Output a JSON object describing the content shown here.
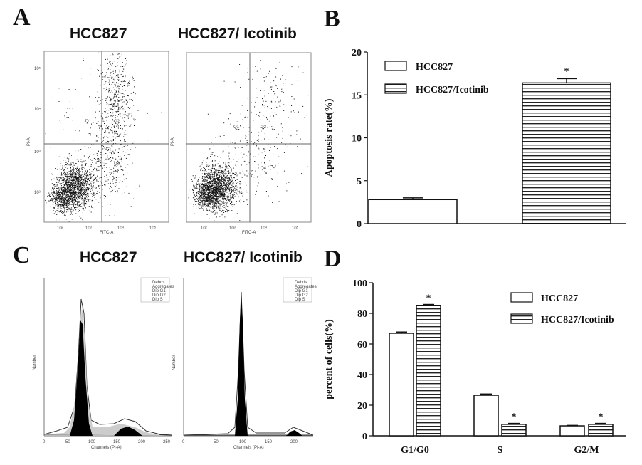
{
  "panels": {
    "a": {
      "letter": "A",
      "titles": [
        "HCC827",
        "HCC827/ Icotinib"
      ],
      "quadrants": [
        "Q1",
        "Q2",
        "Q3",
        "Q4"
      ],
      "x_label": "FITC-A",
      "y_label": "PI-A",
      "log_ticks": [
        "10²",
        "10³",
        "10⁴",
        "10⁵"
      ]
    },
    "b": {
      "letter": "B"
    },
    "c": {
      "letter": "C",
      "titles": [
        "HCC827",
        "HCC827/ Icotinib"
      ],
      "x_label": "Channels (PI-A)",
      "y_label": "Number",
      "legend": [
        "Debris",
        "Aggregates",
        "Dip G1",
        "Dip G2",
        "Dip S"
      ],
      "x_ticks": [
        "0",
        "50",
        "100",
        "150",
        "200",
        "250"
      ]
    },
    "d": {
      "letter": "D"
    }
  },
  "chart_data": [
    {
      "id": "B",
      "type": "bar",
      "categories": [
        "HCC827",
        "HCC827/Icotinib"
      ],
      "series": [
        {
          "name": "Apoptosis rate(%)",
          "values": [
            2.8,
            16.4
          ],
          "errors": [
            0.2,
            0.5
          ]
        }
      ],
      "ylabel": "Apoptosis rate(%)",
      "ylim": [
        0,
        20
      ],
      "yticks": [
        0,
        5,
        10,
        15,
        20
      ],
      "legend": [
        "HCC827",
        "HCC827/Icotinib"
      ],
      "annotations": [
        "",
        "*"
      ],
      "fills": [
        "white",
        "horizontal-stripes"
      ]
    },
    {
      "id": "D",
      "type": "bar",
      "categories": [
        "G1/G0",
        "S",
        "G2/M"
      ],
      "series": [
        {
          "name": "HCC827",
          "values": [
            67,
            26.5,
            6.5
          ],
          "errors": [
            0.8,
            0.8,
            0.3
          ],
          "stars": [
            "",
            "",
            ""
          ]
        },
        {
          "name": "HCC827/Icotinib",
          "values": [
            85,
            7.5,
            7.5
          ],
          "errors": [
            0.8,
            0.6,
            0.6
          ],
          "stars": [
            "*",
            "*",
            "*"
          ]
        }
      ],
      "ylabel": "percent of cells(%)",
      "ylim": [
        0,
        100
      ],
      "yticks": [
        0,
        20,
        40,
        60,
        80,
        100
      ],
      "legend": [
        "HCC827",
        "HCC827/Icotinib"
      ],
      "fills": [
        "white",
        "horizontal-stripes"
      ]
    }
  ]
}
